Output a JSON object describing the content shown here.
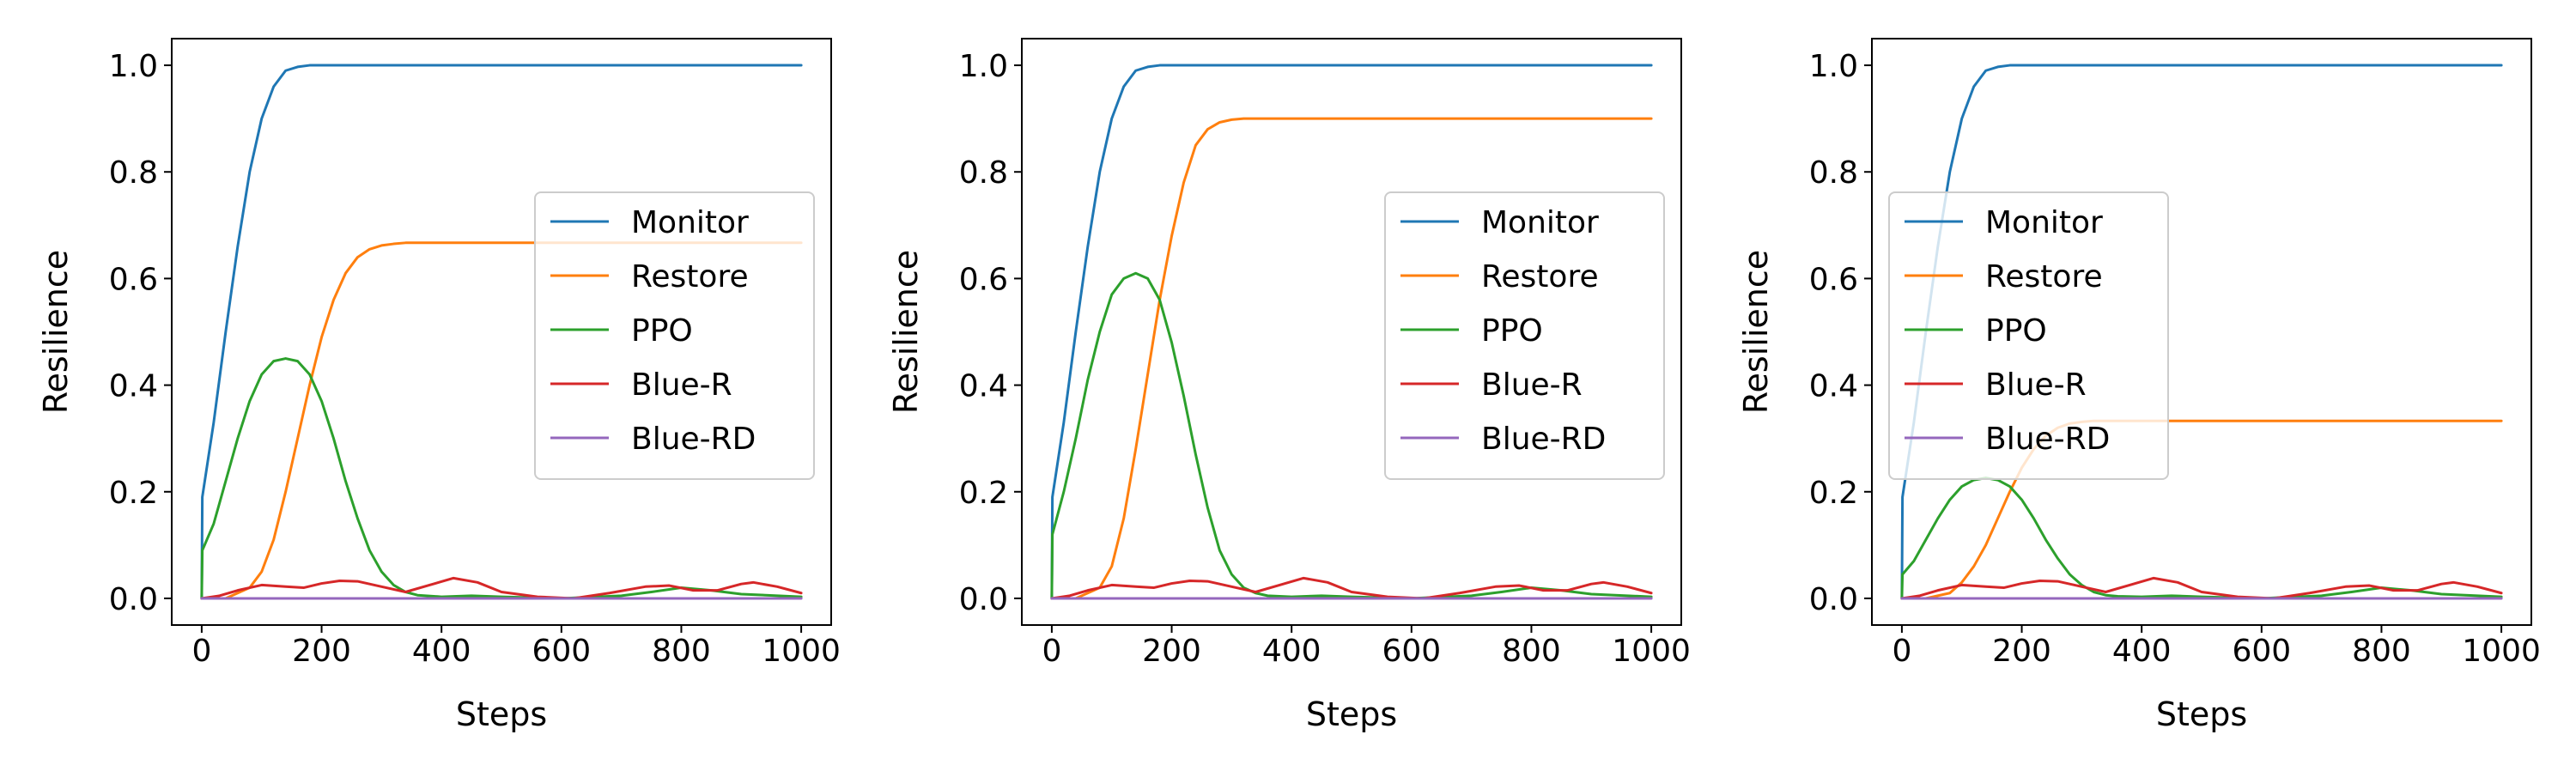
{
  "chart_data": [
    {
      "type": "line",
      "xlabel": "Steps",
      "ylabel": "Resilience",
      "xlim": [
        -50,
        1050
      ],
      "ylim": [
        -0.05,
        1.05
      ],
      "x_ticks": [
        0,
        200,
        400,
        600,
        800,
        1000
      ],
      "y_ticks": [
        0.0,
        0.2,
        0.4,
        0.6,
        0.8,
        1.0
      ],
      "x_tick_labels": [
        "0",
        "200",
        "400",
        "600",
        "800",
        "1000"
      ],
      "y_tick_labels": [
        "0.0",
        "0.2",
        "0.4",
        "0.6",
        "0.8",
        "1.0"
      ],
      "grid": false,
      "legend_position": "center-right",
      "series": [
        {
          "name": "Monitor",
          "color": "#1f77b4",
          "x": [
            0,
            1,
            20,
            40,
            60,
            80,
            100,
            120,
            140,
            160,
            180,
            200,
            250,
            300,
            1000
          ],
          "y": [
            0.0,
            0.19,
            0.33,
            0.5,
            0.66,
            0.8,
            0.9,
            0.96,
            0.99,
            0.997,
            1.0,
            1.0,
            1.0,
            1.0,
            1.0
          ]
        },
        {
          "name": "Restore",
          "color": "#ff7f0e",
          "x": [
            0,
            40,
            80,
            100,
            120,
            140,
            160,
            180,
            200,
            220,
            240,
            260,
            280,
            300,
            320,
            340,
            400,
            1000
          ],
          "y": [
            0.0,
            0.0,
            0.02,
            0.05,
            0.11,
            0.2,
            0.3,
            0.4,
            0.49,
            0.56,
            0.61,
            0.64,
            0.655,
            0.662,
            0.665,
            0.667,
            0.667,
            0.667
          ]
        },
        {
          "name": "PPO",
          "color": "#2ca02c",
          "x": [
            0,
            1,
            20,
            40,
            60,
            80,
            100,
            120,
            140,
            160,
            180,
            200,
            220,
            240,
            260,
            280,
            300,
            320,
            340,
            360,
            400,
            450,
            500,
            600,
            700,
            750,
            800,
            850,
            900,
            1000
          ],
          "y": [
            0.0,
            0.09,
            0.14,
            0.22,
            0.3,
            0.37,
            0.42,
            0.445,
            0.45,
            0.445,
            0.42,
            0.37,
            0.3,
            0.22,
            0.15,
            0.09,
            0.05,
            0.025,
            0.012,
            0.006,
            0.003,
            0.005,
            0.003,
            0.0,
            0.005,
            0.012,
            0.02,
            0.015,
            0.008,
            0.003
          ]
        },
        {
          "name": "Blue-R",
          "color": "#d62728",
          "x": [
            0,
            30,
            60,
            100,
            140,
            170,
            200,
            230,
            260,
            300,
            340,
            380,
            420,
            460,
            500,
            560,
            620,
            680,
            740,
            780,
            820,
            860,
            900,
            920,
            960,
            1000
          ],
          "y": [
            0.0,
            0.005,
            0.015,
            0.025,
            0.022,
            0.02,
            0.028,
            0.033,
            0.032,
            0.022,
            0.012,
            0.025,
            0.038,
            0.03,
            0.012,
            0.003,
            0.0,
            0.01,
            0.022,
            0.024,
            0.015,
            0.015,
            0.027,
            0.03,
            0.022,
            0.01
          ]
        },
        {
          "name": "Blue-RD",
          "color": "#9467bd",
          "x": [
            0,
            1000
          ],
          "y": [
            0.0,
            0.0
          ]
        }
      ]
    },
    {
      "type": "line",
      "xlabel": "Steps",
      "ylabel": "Resilience",
      "xlim": [
        -50,
        1050
      ],
      "ylim": [
        -0.05,
        1.05
      ],
      "x_ticks": [
        0,
        200,
        400,
        600,
        800,
        1000
      ],
      "y_ticks": [
        0.0,
        0.2,
        0.4,
        0.6,
        0.8,
        1.0
      ],
      "x_tick_labels": [
        "0",
        "200",
        "400",
        "600",
        "800",
        "1000"
      ],
      "y_tick_labels": [
        "0.0",
        "0.2",
        "0.4",
        "0.6",
        "0.8",
        "1.0"
      ],
      "grid": false,
      "legend_position": "center-right",
      "series": [
        {
          "name": "Monitor",
          "color": "#1f77b4",
          "x": [
            0,
            1,
            20,
            40,
            60,
            80,
            100,
            120,
            140,
            160,
            180,
            200,
            250,
            300,
            1000
          ],
          "y": [
            0.0,
            0.19,
            0.33,
            0.5,
            0.66,
            0.8,
            0.9,
            0.96,
            0.99,
            0.997,
            1.0,
            1.0,
            1.0,
            1.0,
            1.0
          ]
        },
        {
          "name": "Restore",
          "color": "#ff7f0e",
          "x": [
            0,
            40,
            80,
            100,
            120,
            140,
            160,
            180,
            200,
            220,
            240,
            260,
            280,
            300,
            320,
            340,
            400,
            1000
          ],
          "y": [
            0.0,
            0.0,
            0.02,
            0.06,
            0.15,
            0.28,
            0.42,
            0.56,
            0.68,
            0.78,
            0.85,
            0.88,
            0.893,
            0.898,
            0.9,
            0.9,
            0.9,
            0.9
          ]
        },
        {
          "name": "PPO",
          "color": "#2ca02c",
          "x": [
            0,
            1,
            20,
            40,
            60,
            80,
            100,
            120,
            140,
            160,
            180,
            200,
            220,
            240,
            260,
            280,
            300,
            320,
            340,
            360,
            400,
            450,
            500,
            600,
            700,
            750,
            800,
            850,
            900,
            1000
          ],
          "y": [
            0.0,
            0.12,
            0.2,
            0.3,
            0.41,
            0.5,
            0.57,
            0.6,
            0.61,
            0.6,
            0.56,
            0.48,
            0.38,
            0.27,
            0.17,
            0.09,
            0.045,
            0.02,
            0.01,
            0.005,
            0.003,
            0.005,
            0.003,
            0.0,
            0.005,
            0.012,
            0.02,
            0.015,
            0.008,
            0.003
          ]
        },
        {
          "name": "Blue-R",
          "color": "#d62728",
          "x": [
            0,
            30,
            60,
            100,
            140,
            170,
            200,
            230,
            260,
            300,
            340,
            380,
            420,
            460,
            500,
            560,
            620,
            680,
            740,
            780,
            820,
            860,
            900,
            920,
            960,
            1000
          ],
          "y": [
            0.0,
            0.005,
            0.015,
            0.025,
            0.022,
            0.02,
            0.028,
            0.033,
            0.032,
            0.022,
            0.012,
            0.025,
            0.038,
            0.03,
            0.012,
            0.003,
            0.0,
            0.01,
            0.022,
            0.024,
            0.015,
            0.015,
            0.027,
            0.03,
            0.022,
            0.01
          ]
        },
        {
          "name": "Blue-RD",
          "color": "#9467bd",
          "x": [
            0,
            1000
          ],
          "y": [
            0.0,
            0.0
          ]
        }
      ]
    },
    {
      "type": "line",
      "xlabel": "Steps",
      "ylabel": "Resilience",
      "xlim": [
        -50,
        1050
      ],
      "ylim": [
        -0.05,
        1.05
      ],
      "x_ticks": [
        0,
        200,
        400,
        600,
        800,
        1000
      ],
      "y_ticks": [
        0.0,
        0.2,
        0.4,
        0.6,
        0.8,
        1.0
      ],
      "x_tick_labels": [
        "0",
        "200",
        "400",
        "600",
        "800",
        "1000"
      ],
      "y_tick_labels": [
        "0.0",
        "0.2",
        "0.4",
        "0.6",
        "0.8",
        "1.0"
      ],
      "grid": false,
      "legend_position": "center-left",
      "series": [
        {
          "name": "Monitor",
          "color": "#1f77b4",
          "x": [
            0,
            1,
            20,
            40,
            60,
            80,
            100,
            120,
            140,
            160,
            180,
            200,
            250,
            300,
            1000
          ],
          "y": [
            0.0,
            0.19,
            0.33,
            0.5,
            0.66,
            0.8,
            0.9,
            0.96,
            0.99,
            0.997,
            1.0,
            1.0,
            1.0,
            1.0,
            1.0
          ]
        },
        {
          "name": "Restore",
          "color": "#ff7f0e",
          "x": [
            0,
            40,
            80,
            100,
            120,
            140,
            160,
            180,
            200,
            220,
            240,
            260,
            280,
            300,
            320,
            340,
            400,
            1000
          ],
          "y": [
            0.0,
            0.0,
            0.01,
            0.03,
            0.06,
            0.1,
            0.15,
            0.2,
            0.245,
            0.28,
            0.305,
            0.32,
            0.328,
            0.331,
            0.333,
            0.333,
            0.333,
            0.333
          ]
        },
        {
          "name": "PPO",
          "color": "#2ca02c",
          "x": [
            0,
            1,
            20,
            40,
            60,
            80,
            100,
            120,
            140,
            160,
            180,
            200,
            220,
            240,
            260,
            280,
            300,
            320,
            340,
            360,
            400,
            450,
            500,
            600,
            700,
            750,
            800,
            850,
            900,
            1000
          ],
          "y": [
            0.0,
            0.045,
            0.07,
            0.11,
            0.15,
            0.185,
            0.21,
            0.222,
            0.226,
            0.222,
            0.21,
            0.185,
            0.15,
            0.11,
            0.075,
            0.045,
            0.025,
            0.012,
            0.006,
            0.004,
            0.003,
            0.005,
            0.003,
            0.0,
            0.005,
            0.012,
            0.02,
            0.015,
            0.008,
            0.003
          ]
        },
        {
          "name": "Blue-R",
          "color": "#d62728",
          "x": [
            0,
            30,
            60,
            100,
            140,
            170,
            200,
            230,
            260,
            300,
            340,
            380,
            420,
            460,
            500,
            560,
            620,
            680,
            740,
            780,
            820,
            860,
            900,
            920,
            960,
            1000
          ],
          "y": [
            0.0,
            0.005,
            0.015,
            0.025,
            0.022,
            0.02,
            0.028,
            0.033,
            0.032,
            0.022,
            0.012,
            0.025,
            0.038,
            0.03,
            0.012,
            0.003,
            0.0,
            0.01,
            0.022,
            0.024,
            0.015,
            0.015,
            0.027,
            0.03,
            0.022,
            0.01
          ]
        },
        {
          "name": "Blue-RD",
          "color": "#9467bd",
          "x": [
            0,
            1000
          ],
          "y": [
            0.0,
            0.0
          ]
        }
      ]
    }
  ]
}
